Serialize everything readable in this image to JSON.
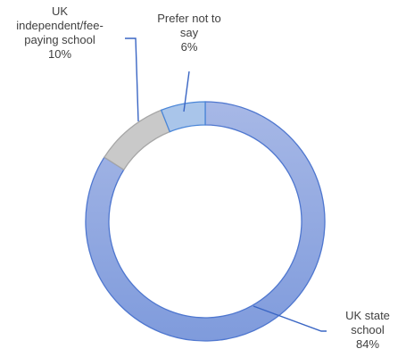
{
  "chart_data": {
    "type": "pie",
    "variant": "donut",
    "title": "",
    "slices": [
      {
        "label": "UK state school",
        "display_label": [
          "UK state",
          "school"
        ],
        "percent_text": "84%",
        "value": 84,
        "fill": "#8fa8df",
        "stroke": "#4f77cf"
      },
      {
        "label": "UK independent/fee-paying school",
        "display_label": [
          "UK",
          "independent/fee-",
          "paying school"
        ],
        "percent_text": "10%",
        "value": 10,
        "fill": "#c9c9c9",
        "stroke": "#a6a6a6"
      },
      {
        "label": "Prefer not to say",
        "display_label": [
          "Prefer not to",
          "say"
        ],
        "percent_text": "6%",
        "value": 6,
        "fill": "#a9c5ea",
        "stroke": "#4a86d8"
      }
    ],
    "start_angle_deg": 0,
    "direction": "clockwise",
    "legend": "none"
  }
}
